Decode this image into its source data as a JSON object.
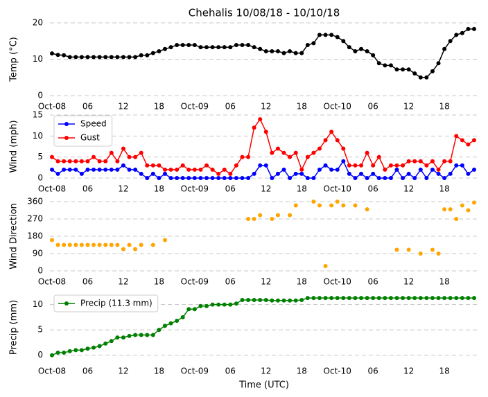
{
  "chart_data": [
    {
      "type": "line",
      "title": "Chehalis 10/08/18 - 10/10/18",
      "ylabel": "Temp (°C)",
      "x": [
        0,
        1,
        2,
        3,
        4,
        5,
        6,
        7,
        8,
        9,
        10,
        11,
        12,
        13,
        14,
        15,
        16,
        17,
        18,
        19,
        20,
        21,
        22,
        23,
        24,
        25,
        26,
        27,
        28,
        29,
        30,
        31,
        32,
        33,
        34,
        35,
        36,
        37,
        38,
        39,
        40,
        41,
        42,
        43,
        44,
        45,
        46,
        47,
        48,
        49,
        50,
        51,
        52,
        53,
        54,
        55,
        56,
        57,
        58,
        59,
        60,
        61,
        62,
        63,
        64,
        65,
        66,
        67,
        68,
        69,
        70,
        71
      ],
      "series": [
        {
          "color": "#000000",
          "values": [
            11.6,
            11.2,
            11.1,
            10.6,
            10.6,
            10.6,
            10.6,
            10.6,
            10.6,
            10.6,
            10.6,
            10.6,
            10.6,
            10.6,
            10.6,
            11.1,
            11.1,
            11.7,
            12.2,
            12.8,
            13.3,
            13.9,
            13.9,
            13.9,
            13.9,
            13.3,
            13.3,
            13.3,
            13.3,
            13.3,
            13.3,
            13.9,
            13.9,
            13.9,
            13.3,
            12.8,
            12.2,
            12.2,
            12.2,
            11.7,
            12.2,
            11.7,
            11.7,
            13.9,
            14.4,
            16.7,
            16.7,
            16.7,
            16.1,
            15.0,
            13.3,
            12.2,
            12.8,
            12.2,
            11.1,
            8.9,
            8.3,
            8.3,
            7.2,
            7.2,
            7.2,
            6.1,
            5.0,
            5.0,
            6.7,
            8.9,
            12.8,
            15.0,
            16.7,
            17.2,
            18.3,
            18.3
          ]
        }
      ],
      "xlim": [
        -0.35,
        71.7
      ],
      "ylim": [
        0,
        20
      ],
      "yticks": [
        0,
        10,
        20
      ],
      "grid": true,
      "xticks": [
        {
          "value": 0,
          "label": "Oct-08"
        },
        {
          "value": 6,
          "label": "06"
        },
        {
          "value": 12,
          "label": "12"
        },
        {
          "value": 18,
          "label": "18"
        },
        {
          "value": 24,
          "label": "Oct-09"
        },
        {
          "value": 30,
          "label": "06"
        },
        {
          "value": 36,
          "label": "12"
        },
        {
          "value": 42,
          "label": "18"
        },
        {
          "value": 48,
          "label": "Oct-10"
        },
        {
          "value": 54,
          "label": "06"
        },
        {
          "value": 60,
          "label": "12"
        },
        {
          "value": 66,
          "label": "18"
        }
      ]
    },
    {
      "type": "line",
      "ylabel": "Wind (mph)",
      "legend": "upper left",
      "x": [
        0,
        1,
        2,
        3,
        4,
        5,
        6,
        7,
        8,
        9,
        10,
        11,
        12,
        13,
        14,
        15,
        16,
        17,
        18,
        19,
        20,
        21,
        22,
        23,
        24,
        25,
        26,
        27,
        28,
        29,
        30,
        31,
        32,
        33,
        34,
        35,
        36,
        37,
        38,
        39,
        40,
        41,
        42,
        43,
        44,
        45,
        46,
        47,
        48,
        49,
        50,
        51,
        52,
        53,
        54,
        55,
        56,
        57,
        58,
        59,
        60,
        61,
        62,
        63,
        64,
        65,
        66,
        67,
        68,
        69,
        70,
        71
      ],
      "series": [
        {
          "name": "Speed",
          "color": "#0000ff",
          "values": [
            2,
            1,
            2,
            2,
            2,
            1,
            2,
            2,
            2,
            2,
            2,
            2,
            3,
            2,
            2,
            1,
            0,
            1,
            0,
            1,
            0,
            0,
            0,
            0,
            0,
            0,
            0,
            0,
            0,
            0,
            0,
            0,
            0,
            0,
            1,
            3,
            3,
            0,
            1,
            2,
            0,
            1,
            1,
            0,
            0,
            2,
            3,
            2,
            2,
            4,
            1,
            0,
            1,
            0,
            1,
            0,
            0,
            0,
            2,
            0,
            1,
            0,
            2,
            0,
            2,
            1,
            0,
            1,
            3,
            3,
            1,
            2
          ]
        },
        {
          "name": "Gust",
          "color": "#ff0000",
          "values": [
            5,
            4,
            4,
            4,
            4,
            4,
            4,
            5,
            4,
            4,
            6,
            4,
            7,
            5,
            5,
            6,
            3,
            3,
            3,
            2,
            2,
            2,
            3,
            2,
            2,
            2,
            3,
            2,
            1,
            2,
            1,
            3,
            5,
            5,
            12,
            14,
            11,
            6,
            7,
            6,
            5,
            6,
            2,
            5,
            6,
            7,
            9,
            11,
            9,
            7,
            3,
            3,
            3,
            6,
            3,
            5,
            2,
            3,
            3,
            3,
            4,
            4,
            4,
            3,
            4,
            2,
            4,
            4,
            10,
            9,
            8,
            9
          ]
        }
      ],
      "xlim": [
        -0.35,
        71.7
      ],
      "ylim": [
        0,
        15
      ],
      "yticks": [
        0,
        5,
        10,
        15
      ],
      "grid": true,
      "xticks": [
        {
          "value": 0,
          "label": "Oct-08"
        },
        {
          "value": 6,
          "label": "06"
        },
        {
          "value": 12,
          "label": "12"
        },
        {
          "value": 18,
          "label": "18"
        },
        {
          "value": 24,
          "label": "Oct-09"
        },
        {
          "value": 30,
          "label": "06"
        },
        {
          "value": 36,
          "label": "12"
        },
        {
          "value": 42,
          "label": "18"
        },
        {
          "value": 48,
          "label": "Oct-10"
        },
        {
          "value": 54,
          "label": "06"
        },
        {
          "value": 60,
          "label": "12"
        },
        {
          "value": 66,
          "label": "18"
        }
      ]
    },
    {
      "type": "scatter",
      "ylabel": "Wind Direction",
      "x": [
        0,
        1,
        2,
        3,
        4,
        5,
        6,
        7,
        8,
        9,
        10,
        11,
        12,
        13,
        14,
        15,
        16,
        17,
        18,
        19,
        20,
        21,
        22,
        23,
        24,
        25,
        26,
        27,
        28,
        29,
        30,
        31,
        32,
        33,
        34,
        35,
        36,
        37,
        38,
        39,
        40,
        41,
        42,
        43,
        44,
        45,
        46,
        47,
        48,
        49,
        50,
        51,
        52,
        53,
        54,
        55,
        56,
        57,
        58,
        59,
        60,
        61,
        62,
        63,
        64,
        65,
        66,
        67,
        68,
        69,
        70,
        71
      ],
      "series": [
        {
          "color": "#ffa500",
          "values": [
            160,
            135,
            135,
            135,
            135,
            135,
            135,
            135,
            135,
            135,
            135,
            135,
            113,
            135,
            113,
            135,
            null,
            135,
            null,
            160,
            null,
            null,
            null,
            null,
            null,
            null,
            null,
            null,
            null,
            null,
            null,
            null,
            null,
            270,
            270,
            290,
            null,
            270,
            290,
            null,
            290,
            340,
            null,
            null,
            360,
            340,
            25,
            340,
            360,
            340,
            null,
            340,
            null,
            320,
            null,
            null,
            null,
            null,
            110,
            null,
            110,
            null,
            90,
            null,
            110,
            90,
            320,
            320,
            270,
            340,
            315,
            355
          ]
        }
      ],
      "xlim": [
        -0.35,
        71.7
      ],
      "ylim": [
        0,
        360
      ],
      "yticks": [
        0,
        90,
        180,
        270,
        360
      ],
      "grid": true,
      "xticks": [
        {
          "value": 0,
          "label": "Oct-08"
        },
        {
          "value": 6,
          "label": "06"
        },
        {
          "value": 12,
          "label": "12"
        },
        {
          "value": 18,
          "label": "18"
        },
        {
          "value": 24,
          "label": "Oct-09"
        },
        {
          "value": 30,
          "label": "06"
        },
        {
          "value": 36,
          "label": "12"
        },
        {
          "value": 42,
          "label": "18"
        },
        {
          "value": 48,
          "label": "Oct-10"
        },
        {
          "value": 54,
          "label": "06"
        },
        {
          "value": 60,
          "label": "12"
        },
        {
          "value": 66,
          "label": "18"
        }
      ]
    },
    {
      "type": "line",
      "ylabel": "Precip (mm)",
      "xlabel": "Time (UTC)",
      "legend": "upper left",
      "x": [
        0,
        1,
        2,
        3,
        4,
        5,
        6,
        7,
        8,
        9,
        10,
        11,
        12,
        13,
        14,
        15,
        16,
        17,
        18,
        19,
        20,
        21,
        22,
        23,
        24,
        25,
        26,
        27,
        28,
        29,
        30,
        31,
        32,
        33,
        34,
        35,
        36,
        37,
        38,
        39,
        40,
        41,
        42,
        43,
        44,
        45,
        46,
        47,
        48,
        49,
        50,
        51,
        52,
        53,
        54,
        55,
        56,
        57,
        58,
        59,
        60,
        61,
        62,
        63,
        64,
        65,
        66,
        67,
        68,
        69,
        70,
        71
      ],
      "series": [
        {
          "name": "Precip (11.3 mm)",
          "color": "#008000",
          "values": [
            0,
            0.5,
            0.5,
            0.8,
            1.0,
            1.0,
            1.3,
            1.5,
            1.8,
            2.3,
            2.8,
            3.5,
            3.5,
            3.8,
            4.0,
            4.0,
            4.0,
            4.0,
            5.0,
            5.8,
            6.3,
            6.8,
            7.5,
            9.1,
            9.1,
            9.7,
            9.7,
            10.0,
            10.0,
            10.0,
            10.0,
            10.2,
            10.9,
            10.9,
            10.9,
            10.9,
            10.9,
            10.8,
            10.8,
            10.8,
            10.8,
            10.8,
            10.9,
            11.3,
            11.3,
            11.3,
            11.3,
            11.3,
            11.3,
            11.3,
            11.3,
            11.3,
            11.3,
            11.3,
            11.3,
            11.3,
            11.3,
            11.3,
            11.3,
            11.3,
            11.3,
            11.3,
            11.3,
            11.3,
            11.3,
            11.3,
            11.3,
            11.3,
            11.3,
            11.3,
            11.3,
            11.3
          ]
        }
      ],
      "xlim": [
        -0.35,
        71.7
      ],
      "ylim": [
        -1,
        12
      ],
      "yticks": [
        0,
        5,
        10
      ],
      "grid": true,
      "xticks": [
        {
          "value": 0,
          "label": "Oct-08"
        },
        {
          "value": 6,
          "label": "06"
        },
        {
          "value": 12,
          "label": "12"
        },
        {
          "value": 18,
          "label": "18"
        },
        {
          "value": 24,
          "label": "Oct-09"
        },
        {
          "value": 30,
          "label": "06"
        },
        {
          "value": 36,
          "label": "12"
        },
        {
          "value": 42,
          "label": "18"
        },
        {
          "value": 48,
          "label": "Oct-10"
        },
        {
          "value": 54,
          "label": "06"
        },
        {
          "value": 60,
          "label": "12"
        },
        {
          "value": 66,
          "label": "18"
        }
      ]
    }
  ]
}
